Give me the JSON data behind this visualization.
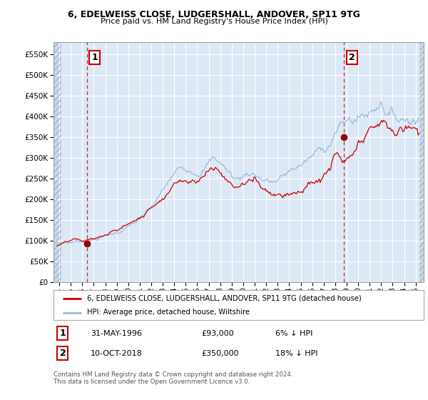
{
  "title": "6, EDELWEISS CLOSE, LUDGERSHALL, ANDOVER, SP11 9TG",
  "subtitle": "Price paid vs. HM Land Registry's House Price Index (HPI)",
  "ylim": [
    0,
    580000
  ],
  "bg_color": "#ffffff",
  "plot_bg_color": "#dce8f5",
  "grid_color": "#ffffff",
  "red_line_color": "#cc0000",
  "blue_line_color": "#99bbdd",
  "red_dot_color": "#990000",
  "marker1_x": 1996.42,
  "marker1_y": 93000,
  "marker2_x": 2018.78,
  "marker2_y": 350000,
  "marker1_label": "1",
  "marker2_label": "2",
  "legend_entry1": "6, EDELWEISS CLOSE, LUDGERSHALL, ANDOVER, SP11 9TG (detached house)",
  "legend_entry2": "HPI: Average price, detached house, Wiltshire",
  "footer": "Contains HM Land Registry data © Crown copyright and database right 2024.\nThis data is licensed under the Open Government Licence v3.0.",
  "xmin": 1993.5,
  "xmax": 2025.7
}
